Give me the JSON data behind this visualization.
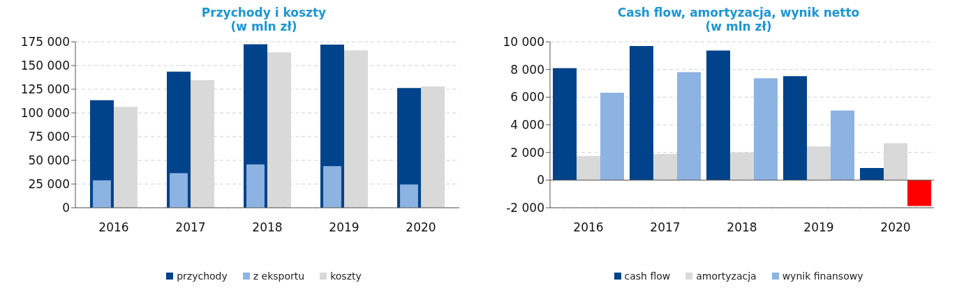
{
  "chart_data": [
    {
      "type": "bar",
      "title": "Przychody i koszty",
      "subtitle": "(w mln zł)",
      "categories": [
        "2016",
        "2017",
        "2018",
        "2019",
        "2020"
      ],
      "series": [
        {
          "name": "przychody",
          "color": "#00438a",
          "values": [
            113500,
            143500,
            172500,
            172000,
            126200
          ]
        },
        {
          "name": "z eksportu",
          "color": "#8db3e2",
          "values": [
            28900,
            36500,
            45700,
            43900,
            24600
          ]
        },
        {
          "name": "koszty",
          "color": "#d9d9d9",
          "values": [
            106500,
            134500,
            164000,
            166000,
            128000
          ]
        }
      ],
      "ylim": [
        0,
        175000
      ],
      "yticks": [
        {
          "value": 0,
          "label": "0"
        },
        {
          "value": 25000,
          "label": "25 000"
        },
        {
          "value": 50000,
          "label": "50 000"
        },
        {
          "value": 75000,
          "label": "75 000"
        },
        {
          "value": 100000,
          "label": "100 000"
        },
        {
          "value": 125000,
          "label": "125 000"
        },
        {
          "value": 150000,
          "label": "150 000"
        },
        {
          "value": 175000,
          "label": "175 000"
        }
      ],
      "grid": "y",
      "legend": "bottom"
    },
    {
      "type": "bar",
      "title": "Cash flow, amortyzacja, wynik netto",
      "subtitle": "(w mln zł)",
      "categories": [
        "2016",
        "2017",
        "2018",
        "2019",
        "2020"
      ],
      "series": [
        {
          "name": "cash flow",
          "color": "#00438a",
          "values": [
            8100,
            9700,
            9370,
            7520,
            880
          ]
        },
        {
          "name": "amortyzacja",
          "color": "#d9d9d9",
          "values": [
            1750,
            1900,
            2000,
            2440,
            2670
          ]
        },
        {
          "name": "wynik finansowy",
          "color": "#8db3e2",
          "colors": [
            "#8db3e2",
            "#8db3e2",
            "#8db3e2",
            "#8db3e2",
            "#ff0000"
          ],
          "values": [
            6320,
            7810,
            7370,
            5030,
            -1870
          ]
        }
      ],
      "ylim": [
        -2000,
        10000
      ],
      "yticks": [
        {
          "value": -2000,
          "label": "-2 000"
        },
        {
          "value": 0,
          "label": "0"
        },
        {
          "value": 2000,
          "label": "2 000"
        },
        {
          "value": 4000,
          "label": "4 000"
        },
        {
          "value": 6000,
          "label": "6 000"
        },
        {
          "value": 8000,
          "label": "8 000"
        },
        {
          "value": 10000,
          "label": "10 000"
        }
      ],
      "grid": "y",
      "legend": "bottom"
    }
  ]
}
